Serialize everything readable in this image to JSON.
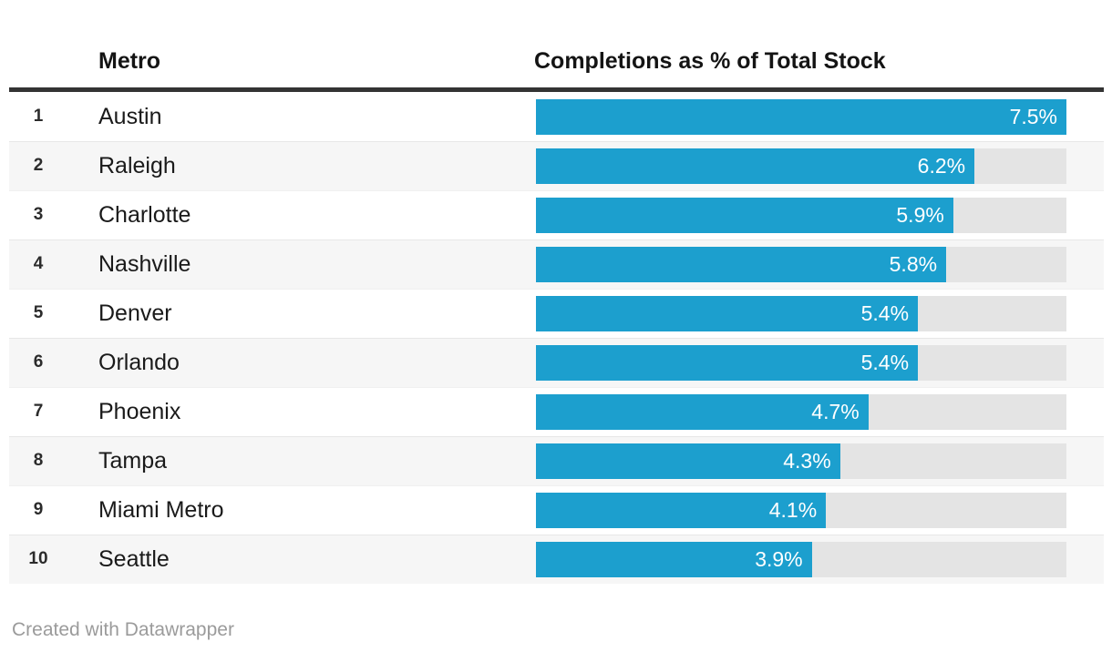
{
  "header": {
    "metro_column_label": "Metro",
    "value_column_label": "Completions as % of Total Stock"
  },
  "footer": {
    "credit": "Created with Datawrapper"
  },
  "colors": {
    "bar": "#1c9fce",
    "track": "#e4e4e4",
    "alt_row_background": "#f6f6f6",
    "header_rule": "#333333",
    "bar_label_text": "#ffffff",
    "credit_text": "#9b9b9b"
  },
  "chart_data": {
    "type": "bar",
    "orientation": "horizontal",
    "title": "",
    "columns": [
      "Metro",
      "Completions as % of Total Stock"
    ],
    "ranks": [
      "1",
      "2",
      "3",
      "4",
      "5",
      "6",
      "7",
      "8",
      "9",
      "10"
    ],
    "categories": [
      "Austin",
      "Raleigh",
      "Charlotte",
      "Nashville",
      "Denver",
      "Orlando",
      "Phoenix",
      "Tampa",
      "Miami Metro",
      "Seattle"
    ],
    "values": [
      7.5,
      6.2,
      5.9,
      5.8,
      5.4,
      5.4,
      4.7,
      4.3,
      4.1,
      3.9
    ],
    "value_labels": [
      "7.5%",
      "6.2%",
      "5.9%",
      "5.8%",
      "5.4%",
      "5.4%",
      "4.7%",
      "4.3%",
      "4.1%",
      "3.9%"
    ],
    "xlim": [
      0,
      7.5
    ],
    "grid": "off",
    "legend": "none",
    "value_label_position": "inside-end"
  }
}
